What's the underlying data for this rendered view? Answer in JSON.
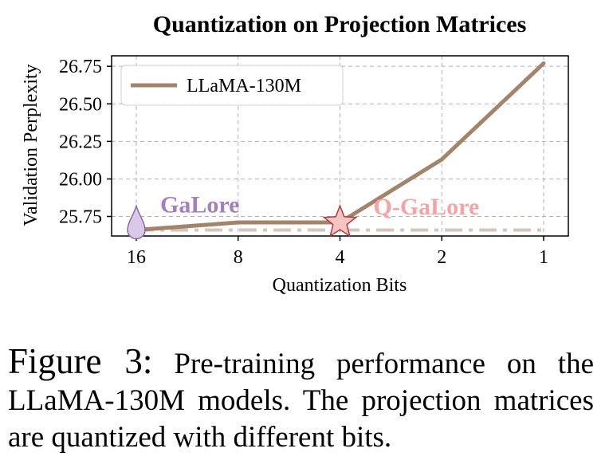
{
  "chart_data": {
    "type": "line",
    "title": "Quantization on Projection Matrices",
    "xlabel": "Quantization Bits",
    "ylabel": "Validation Perplexity",
    "categories": [
      "16",
      "8",
      "4",
      "2",
      "1"
    ],
    "yticks": [
      "25.75",
      "26.00",
      "26.25",
      "26.50",
      "26.75"
    ],
    "ylim": [
      25.62,
      26.82
    ],
    "grid": true,
    "legend_position": "top-left",
    "series": [
      {
        "name": "LLaMA-130M",
        "values": [
          25.66,
          25.71,
          25.71,
          26.13,
          26.77
        ],
        "color": "#a38468"
      }
    ],
    "baseline": {
      "value": 25.66,
      "color": "#d4c7b9",
      "style": "dash-dot"
    },
    "annotations": [
      {
        "text": "GaLore",
        "category": "16",
        "value": 25.66,
        "marker": "drop-icon",
        "color": "#a37fbe",
        "marker_color": "#d9c9e6"
      },
      {
        "text": "Q-GaLore",
        "category": "4",
        "value": 25.71,
        "marker": "star-icon",
        "color": "#f5a3a3",
        "marker_color": "#f7c4c4"
      }
    ]
  },
  "caption": {
    "label": "Figure 3:",
    "text": "Pre-training performance on the LLaMA-130M models. The projection matrices are quantized with different bits."
  }
}
